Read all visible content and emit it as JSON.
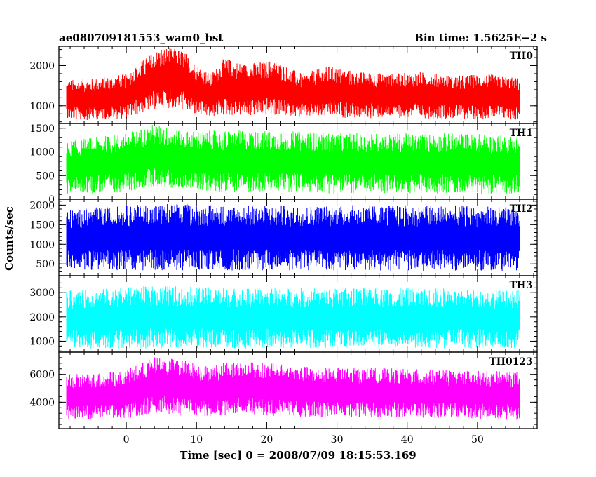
{
  "header": {
    "left": "ae080709181553_wam0_bst",
    "right": "Bin time: 1.5625E−2 s"
  },
  "chart_data": {
    "type": "line",
    "xlabel": "Time [sec] 0 = 2008/07/09 18:15:53.169",
    "ylabel": "Counts/sec",
    "xlim": [
      -9.6,
      58.5
    ],
    "x_ticks": [
      0,
      10,
      20,
      30,
      40,
      50
    ],
    "x_tick_labels": [
      "0",
      "10",
      "20",
      "30",
      "40",
      "50"
    ],
    "x_data_range": [
      -8.5,
      56
    ],
    "bin_time": 0.015625,
    "panels": [
      {
        "name": "TH0",
        "color": "#ff0000",
        "ylim": [
          560,
          2480
        ],
        "y_ticks": [
          1000,
          2000
        ],
        "y_tick_labels": [
          "1000",
          "2000"
        ],
        "envelope": [
          {
            "x": -8.0,
            "low": 640,
            "high": 1650
          },
          {
            "x": -4.0,
            "low": 650,
            "high": 1700
          },
          {
            "x": 0.0,
            "low": 680,
            "high": 1800
          },
          {
            "x": 2.0,
            "low": 800,
            "high": 2100
          },
          {
            "x": 5.0,
            "low": 950,
            "high": 2480
          },
          {
            "x": 8.0,
            "low": 900,
            "high": 2400
          },
          {
            "x": 10.0,
            "low": 750,
            "high": 2050
          },
          {
            "x": 12.0,
            "low": 700,
            "high": 1800
          },
          {
            "x": 14.0,
            "low": 760,
            "high": 2200
          },
          {
            "x": 17.0,
            "low": 740,
            "high": 2050
          },
          {
            "x": 21.0,
            "low": 760,
            "high": 2150
          },
          {
            "x": 25.0,
            "low": 700,
            "high": 1800
          },
          {
            "x": 29.0,
            "low": 720,
            "high": 2000
          },
          {
            "x": 33.0,
            "low": 680,
            "high": 1850
          },
          {
            "x": 38.0,
            "low": 700,
            "high": 1800
          },
          {
            "x": 42.0,
            "low": 690,
            "high": 1850
          },
          {
            "x": 47.0,
            "low": 670,
            "high": 1750
          },
          {
            "x": 51.0,
            "low": 680,
            "high": 1800
          },
          {
            "x": 56.0,
            "low": 640,
            "high": 1700
          }
        ]
      },
      {
        "name": "TH1",
        "color": "#00ff00",
        "ylim": [
          0,
          1600
        ],
        "y_ticks": [
          0,
          500,
          1000,
          1500
        ],
        "y_tick_labels": [
          "0",
          "500",
          "1000",
          "1500"
        ],
        "envelope": [
          {
            "x": -8.0,
            "low": 100,
            "high": 1250
          },
          {
            "x": 0.0,
            "low": 150,
            "high": 1400
          },
          {
            "x": 4.0,
            "low": 250,
            "high": 1600
          },
          {
            "x": 8.0,
            "low": 200,
            "high": 1450
          },
          {
            "x": 14.0,
            "low": 150,
            "high": 1450
          },
          {
            "x": 22.0,
            "low": 150,
            "high": 1450
          },
          {
            "x": 30.0,
            "low": 120,
            "high": 1400
          },
          {
            "x": 40.0,
            "low": 120,
            "high": 1400
          },
          {
            "x": 48.0,
            "low": 120,
            "high": 1400
          },
          {
            "x": 56.0,
            "low": 100,
            "high": 1350
          }
        ]
      },
      {
        "name": "TH2",
        "color": "#0000ff",
        "ylim": [
          200,
          2150
        ],
        "y_ticks": [
          500,
          1000,
          1500,
          2000
        ],
        "y_tick_labels": [
          "500",
          "1000",
          "1500",
          "2000"
        ],
        "envelope": [
          {
            "x": -8.0,
            "low": 350,
            "high": 1900
          },
          {
            "x": 5.0,
            "low": 330,
            "high": 2050
          },
          {
            "x": 15.0,
            "low": 330,
            "high": 2000
          },
          {
            "x": 25.0,
            "low": 330,
            "high": 2000
          },
          {
            "x": 35.0,
            "low": 320,
            "high": 2000
          },
          {
            "x": 45.0,
            "low": 320,
            "high": 2000
          },
          {
            "x": 56.0,
            "low": 320,
            "high": 1950
          }
        ]
      },
      {
        "name": "TH3",
        "color": "#00ffff",
        "ylim": [
          550,
          3700
        ],
        "y_ticks": [
          1000,
          2000,
          3000
        ],
        "y_tick_labels": [
          "1000",
          "2000",
          "3000"
        ],
        "envelope": [
          {
            "x": -8.0,
            "low": 700,
            "high": 3100
          },
          {
            "x": 5.0,
            "low": 700,
            "high": 3300
          },
          {
            "x": 15.0,
            "low": 700,
            "high": 3200
          },
          {
            "x": 25.0,
            "low": 700,
            "high": 3200
          },
          {
            "x": 35.0,
            "low": 700,
            "high": 3200
          },
          {
            "x": 45.0,
            "low": 700,
            "high": 3200
          },
          {
            "x": 56.0,
            "low": 700,
            "high": 3100
          }
        ]
      },
      {
        "name": "TH0123",
        "color": "#ff00ff",
        "ylim": [
          2100,
          7600
        ],
        "y_ticks": [
          4000,
          6000
        ],
        "y_tick_labels": [
          "4000",
          "6000"
        ],
        "envelope": [
          {
            "x": -8.0,
            "low": 2700,
            "high": 6000
          },
          {
            "x": 0.0,
            "low": 2800,
            "high": 6300
          },
          {
            "x": 4.0,
            "low": 3200,
            "high": 7300
          },
          {
            "x": 8.0,
            "low": 3000,
            "high": 7100
          },
          {
            "x": 12.0,
            "low": 2900,
            "high": 6600
          },
          {
            "x": 15.0,
            "low": 3100,
            "high": 7000
          },
          {
            "x": 21.0,
            "low": 3000,
            "high": 6800
          },
          {
            "x": 27.0,
            "low": 2900,
            "high": 6500
          },
          {
            "x": 33.0,
            "low": 2900,
            "high": 6500
          },
          {
            "x": 40.0,
            "low": 2900,
            "high": 6400
          },
          {
            "x": 47.0,
            "low": 2800,
            "high": 6300
          },
          {
            "x": 56.0,
            "low": 2700,
            "high": 6200
          }
        ]
      }
    ]
  }
}
